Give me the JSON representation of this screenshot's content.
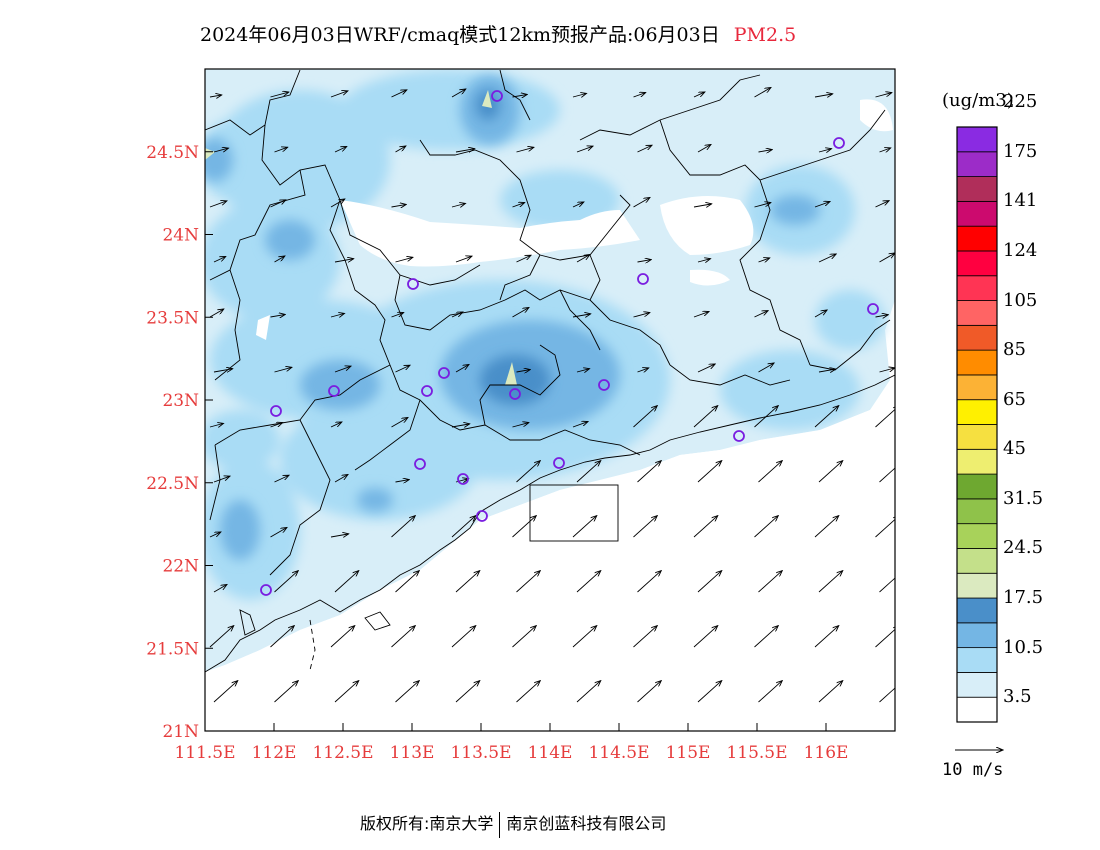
{
  "title": {
    "text": "2024年06月03日WRF/cmaq模式12km预报产品:06月03日",
    "variable": "PM2.5"
  },
  "map": {
    "lat_labels": [
      "24.5N",
      "24N",
      "23.5N",
      "23N",
      "22.5N",
      "22N",
      "21.5N",
      "21N"
    ],
    "lon_labels": [
      "111.5E",
      "112E",
      "112.5E",
      "113E",
      "113.5E",
      "114E",
      "114.5E",
      "115E",
      "115.5E",
      "116E"
    ],
    "lon_range": [
      111.5,
      116.5
    ],
    "lat_range": [
      21,
      25
    ]
  },
  "colorbar": {
    "unit": "(ug/m3)",
    "levels": [
      "3.5",
      "10.5",
      "17.5",
      "24.5",
      "31.5",
      "45",
      "65",
      "85",
      "105",
      "124",
      "141",
      "175",
      "225"
    ],
    "colors": [
      "#ffffff",
      "#d8eef8",
      "#a9dcf5",
      "#74b6e4",
      "#4a8fc9",
      "#dbeac0",
      "#c4e08a",
      "#a8d25a",
      "#8fc24a",
      "#6ea830",
      "#eeee70",
      "#f6e040",
      "#fff000",
      "#fcb235",
      "#ff8c00",
      "#f05a28",
      "#ff6464",
      "#ff3454",
      "#ff0040",
      "#ff0000",
      "#cc0a6e",
      "#b02e5a",
      "#9c2cc8",
      "#8a2be2"
    ]
  },
  "wind_reference": {
    "label": "10 m/s"
  },
  "footer": {
    "copyright_label": "版权所有:",
    "org1": "南京大学",
    "org2": "南京创蓝科技有限公司"
  }
}
